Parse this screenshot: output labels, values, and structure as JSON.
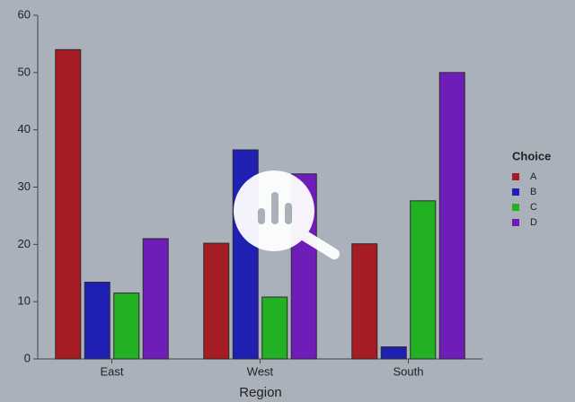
{
  "chart_data": {
    "type": "bar",
    "x_label": "Region",
    "legend_title": "Choice",
    "legend": "right",
    "categories": [
      "East",
      "West",
      "South"
    ],
    "series": [
      {
        "name": "A",
        "color": "#a51c24",
        "values": [
          54,
          20.2,
          20.1
        ]
      },
      {
        "name": "B",
        "color": "#1f1fb4",
        "values": [
          13.4,
          36.5,
          2.1
        ]
      },
      {
        "name": "C",
        "color": "#22b122",
        "values": [
          11.5,
          10.8,
          27.6
        ]
      },
      {
        "name": "D",
        "color": "#6f1db8",
        "values": [
          21,
          32.3,
          50
        ]
      }
    ],
    "ylim": [
      0,
      60
    ],
    "yticks": [
      0,
      10,
      20,
      30,
      40,
      50,
      60
    ]
  }
}
